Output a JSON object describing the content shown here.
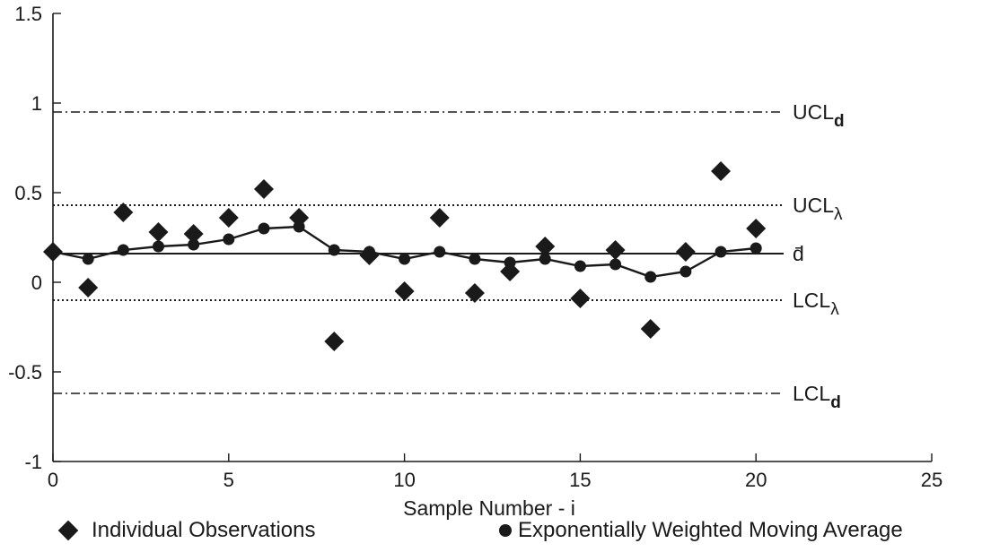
{
  "chart_data": {
    "type": "scatter",
    "title": "",
    "xlabel": "Sample Number - i",
    "ylabel": "",
    "xlim": [
      0,
      25
    ],
    "ylim": [
      -1,
      1.5
    ],
    "x_ticks": [
      0,
      5,
      10,
      15,
      20,
      25
    ],
    "x_tick_labels": [
      "0",
      "5",
      "10",
      "15",
      "20",
      "25"
    ],
    "y_ticks": [
      -1,
      -0.5,
      0,
      0.5,
      1,
      1.5
    ],
    "y_tick_labels": [
      "-1",
      "-0.5",
      "0",
      "0.5",
      "1",
      "1.5"
    ],
    "grid": false,
    "legend_position": "bottom",
    "series": [
      {
        "name": "Individual Observations",
        "marker": "diamond",
        "x": [
          0,
          1,
          2,
          3,
          4,
          5,
          6,
          7,
          8,
          9,
          10,
          11,
          12,
          13,
          14,
          15,
          16,
          17,
          18,
          19,
          20
        ],
        "values": [
          0.17,
          -0.03,
          0.39,
          0.28,
          0.27,
          0.36,
          0.52,
          0.36,
          -0.33,
          0.15,
          -0.05,
          0.36,
          -0.06,
          0.06,
          0.2,
          -0.09,
          0.18,
          -0.26,
          0.17,
          0.62,
          0.3
        ]
      },
      {
        "name": "Exponentially Weighted Moving Average",
        "marker": "circle",
        "line": true,
        "x": [
          0,
          1,
          2,
          3,
          4,
          5,
          6,
          7,
          8,
          9,
          10,
          11,
          12,
          13,
          14,
          15,
          16,
          17,
          18,
          19,
          20
        ],
        "values": [
          0.17,
          0.13,
          0.18,
          0.2,
          0.21,
          0.24,
          0.3,
          0.31,
          0.18,
          0.17,
          0.13,
          0.17,
          0.13,
          0.11,
          0.13,
          0.09,
          0.1,
          0.03,
          0.06,
          0.17,
          0.19
        ]
      }
    ],
    "reference_lines": [
      {
        "label": "UCL",
        "subscript": "d",
        "value": 0.95,
        "style": "dash-dot"
      },
      {
        "label": "UCL",
        "subscript": "λ",
        "value": 0.43,
        "style": "dotted"
      },
      {
        "label": "d̄",
        "subscript": "",
        "value": 0.16,
        "style": "solid"
      },
      {
        "label": "LCL",
        "subscript": "λ",
        "value": -0.1,
        "style": "dotted"
      },
      {
        "label": "LCL",
        "subscript": "d",
        "value": -0.62,
        "style": "dash-dot"
      }
    ]
  },
  "legend": {
    "diamond_label": "Individual Observations",
    "circle_label": "Exponentially Weighted Moving Average"
  }
}
